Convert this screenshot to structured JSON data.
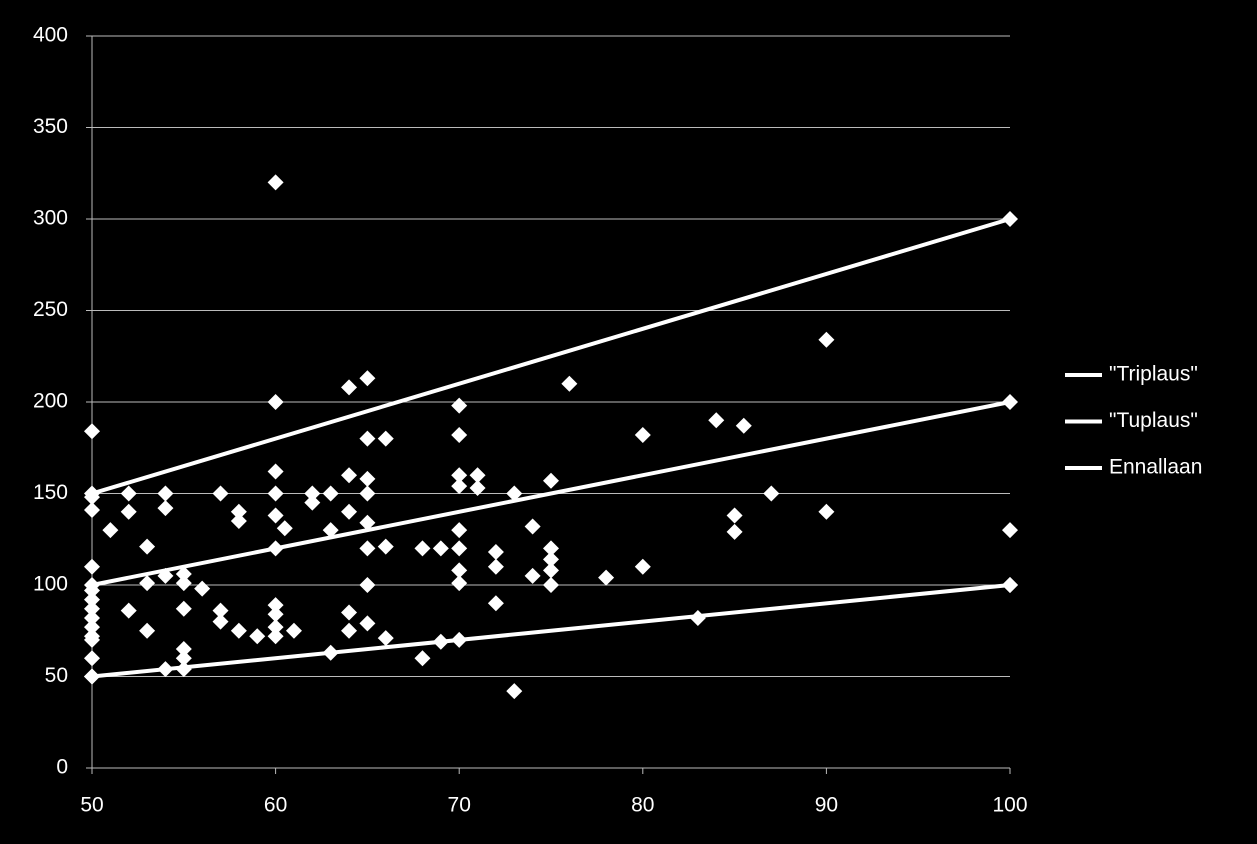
{
  "chart_data": {
    "type": "scatter",
    "series": [
      {
        "type": "scatter",
        "color": "#ffffff",
        "x": [
          50,
          50,
          50,
          50,
          50,
          50,
          50,
          50,
          50,
          50,
          50,
          50,
          50,
          51,
          52,
          52,
          52,
          53,
          53,
          53,
          54,
          54,
          54,
          54,
          55,
          55,
          55,
          55,
          55,
          55,
          56,
          57,
          57,
          57,
          58,
          58,
          58,
          59,
          60,
          60,
          60,
          60,
          60,
          60,
          60,
          60,
          60,
          60,
          60.5,
          61,
          62,
          62,
          63,
          63,
          63,
          64,
          64,
          64,
          64,
          64,
          65,
          65,
          65,
          65,
          65,
          65,
          65,
          65,
          66,
          66,
          66,
          68,
          68,
          69,
          69,
          70,
          70,
          70,
          70,
          70,
          70,
          70,
          70,
          70,
          71,
          71,
          72,
          72,
          72,
          73,
          73,
          74,
          74,
          75,
          75,
          75,
          75,
          75,
          76,
          78,
          80,
          80,
          83,
          84,
          85,
          85,
          85.5,
          87,
          90,
          90,
          100,
          100
        ],
        "values": [
          184,
          148,
          141,
          110,
          97,
          92,
          87,
          82,
          77,
          72,
          70,
          60,
          50,
          130,
          150,
          140,
          86,
          121,
          101,
          75,
          150,
          142,
          105,
          54,
          106,
          101,
          87,
          65,
          60,
          54,
          98,
          150,
          86,
          80,
          140,
          135,
          75,
          72,
          320,
          200,
          162,
          150,
          138,
          120,
          89,
          84,
          77,
          72,
          131,
          75,
          150,
          145,
          150,
          130,
          63,
          208,
          160,
          140,
          85,
          75,
          213,
          180,
          158,
          150,
          134,
          120,
          100,
          79,
          180,
          121,
          71,
          120,
          60,
          120,
          69,
          198,
          182,
          160,
          154,
          130,
          120,
          108,
          101,
          70,
          160,
          153,
          118,
          110,
          90,
          150,
          42,
          132,
          105,
          157,
          120,
          114,
          108,
          100,
          210,
          104,
          182,
          110,
          82,
          190,
          138,
          129,
          187,
          150,
          234,
          140,
          130,
          100
        ]
      },
      {
        "type": "line",
        "name": "\"Triplaus\"",
        "color": "#ffffff",
        "x": [
          50,
          100
        ],
        "values": [
          150,
          300
        ]
      },
      {
        "type": "line",
        "name": "\"Tuplaus\"",
        "color": "#ffffff",
        "x": [
          50,
          100
        ],
        "values": [
          100,
          200
        ]
      },
      {
        "type": "line",
        "name": "Ennallaan",
        "color": "#ffffff",
        "x": [
          50,
          100
        ],
        "values": [
          50,
          100
        ]
      }
    ],
    "xlim": [
      50,
      100
    ],
    "xticks": [
      50,
      60,
      70,
      80,
      90,
      100
    ],
    "ylim": [
      0,
      400
    ],
    "yticks": [
      0,
      50,
      100,
      150,
      200,
      250,
      300,
      350,
      400
    ],
    "grid": true,
    "legend": "right"
  }
}
